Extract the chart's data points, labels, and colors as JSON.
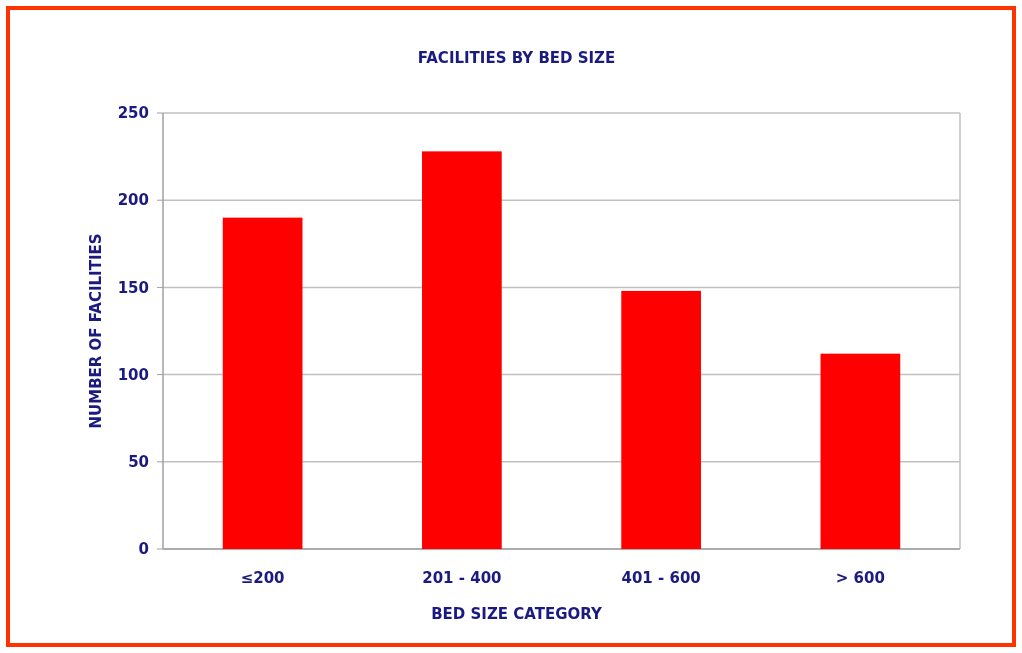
{
  "chart_data": {
    "type": "bar",
    "title": "FACILITIES BY BED SIZE",
    "xlabel": "BED SIZE CATEGORY",
    "ylabel": "NUMBER OF FACILITIES",
    "categories": [
      "≤200",
      "201 - 400",
      "401 - 600",
      "> 600"
    ],
    "values": [
      190,
      228,
      148,
      112
    ],
    "color": "#ff0000",
    "ylim": [
      0,
      250
    ],
    "yticks": [
      0,
      50,
      100,
      150,
      200,
      250
    ],
    "grid": "y"
  }
}
